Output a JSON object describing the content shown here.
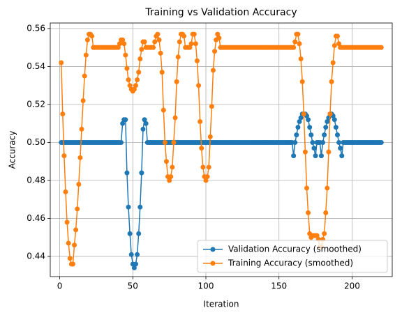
{
  "chart_data": {
    "type": "line",
    "title": "Training vs Validation Accuracy",
    "xlabel": "Iteration",
    "ylabel": "Accuracy",
    "grid": true,
    "legend": "lower right",
    "xlim": [
      -6.5,
      227.5
    ],
    "ylim": [
      0.4294,
      0.5629
    ],
    "xticks": [
      0,
      50,
      100,
      150,
      200
    ],
    "yticks": [
      0.44,
      0.46,
      0.48,
      {
        "value": 0.5,
        "label": "0.50"
      },
      0.52,
      0.54,
      0.56
    ],
    "x": [
      1,
      2,
      3,
      4,
      5,
      6,
      7,
      8,
      9,
      10,
      11,
      12,
      13,
      14,
      15,
      16,
      17,
      18,
      19,
      20,
      21,
      22,
      23,
      24,
      25,
      26,
      27,
      28,
      29,
      30,
      31,
      32,
      33,
      34,
      35,
      36,
      37,
      38,
      39,
      40,
      41,
      42,
      43,
      44,
      45,
      46,
      47,
      48,
      49,
      50,
      51,
      52,
      53,
      54,
      55,
      56,
      57,
      58,
      59,
      60,
      61,
      62,
      63,
      64,
      65,
      66,
      67,
      68,
      69,
      70,
      71,
      72,
      73,
      74,
      75,
      76,
      77,
      78,
      79,
      80,
      81,
      82,
      83,
      84,
      85,
      86,
      87,
      88,
      89,
      90,
      91,
      92,
      93,
      94,
      95,
      96,
      97,
      98,
      99,
      100,
      101,
      102,
      103,
      104,
      105,
      106,
      107,
      108,
      109,
      110,
      111,
      112,
      113,
      114,
      115,
      116,
      117,
      118,
      119,
      120,
      121,
      122,
      123,
      124,
      125,
      126,
      127,
      128,
      129,
      130,
      131,
      132,
      133,
      134,
      135,
      136,
      137,
      138,
      139,
      140,
      141,
      142,
      143,
      144,
      145,
      146,
      147,
      148,
      149,
      150,
      151,
      152,
      153,
      154,
      155,
      156,
      157,
      158,
      159,
      160,
      161,
      162,
      163,
      164,
      165,
      166,
      167,
      168,
      169,
      170,
      171,
      172,
      173,
      174,
      175,
      176,
      177,
      178,
      179,
      180,
      181,
      182,
      183,
      184,
      185,
      186,
      187,
      188,
      189,
      190,
      191,
      192,
      193,
      194,
      195,
      196,
      197,
      198,
      199,
      200,
      201,
      202,
      203,
      204,
      205,
      206,
      207,
      208,
      209,
      210,
      211,
      212,
      213,
      214,
      215,
      216,
      217,
      218,
      219,
      220
    ],
    "series": [
      {
        "name": "Validation Accuracy (smoothed)",
        "color": "#1f77b4",
        "values": [
          0.5,
          0.5,
          0.5,
          0.5,
          0.5,
          0.5,
          0.5,
          0.5,
          0.5,
          0.5,
          0.5,
          0.5,
          0.5,
          0.5,
          0.5,
          0.5,
          0.5,
          0.5,
          0.5,
          0.5,
          0.5,
          0.5,
          0.5,
          0.5,
          0.5,
          0.5,
          0.5,
          0.5,
          0.5,
          0.5,
          0.5,
          0.5,
          0.5,
          0.5,
          0.5,
          0.5,
          0.5,
          0.5,
          0.5,
          0.5,
          0.5,
          0.5,
          0.51,
          0.512,
          0.512,
          0.484,
          0.466,
          0.452,
          0.441,
          0.436,
          0.434,
          0.436,
          0.441,
          0.452,
          0.466,
          0.484,
          0.507,
          0.512,
          0.51,
          0.5,
          0.5,
          0.5,
          0.5,
          0.5,
          0.5,
          0.5,
          0.5,
          0.5,
          0.5,
          0.5,
          0.5,
          0.5,
          0.5,
          0.5,
          0.5,
          0.5,
          0.5,
          0.5,
          0.5,
          0.5,
          0.5,
          0.5,
          0.5,
          0.5,
          0.5,
          0.5,
          0.5,
          0.5,
          0.5,
          0.5,
          0.5,
          0.5,
          0.5,
          0.5,
          0.5,
          0.5,
          0.5,
          0.5,
          0.5,
          0.5,
          0.5,
          0.5,
          0.5,
          0.5,
          0.5,
          0.5,
          0.5,
          0.5,
          0.5,
          0.5,
          0.5,
          0.5,
          0.5,
          0.5,
          0.5,
          0.5,
          0.5,
          0.5,
          0.5,
          0.5,
          0.5,
          0.5,
          0.5,
          0.5,
          0.5,
          0.5,
          0.5,
          0.5,
          0.5,
          0.5,
          0.5,
          0.5,
          0.5,
          0.5,
          0.5,
          0.5,
          0.5,
          0.5,
          0.5,
          0.5,
          0.5,
          0.5,
          0.5,
          0.5,
          0.5,
          0.5,
          0.5,
          0.5,
          0.5,
          0.5,
          0.5,
          0.5,
          0.5,
          0.5,
          0.5,
          0.5,
          0.5,
          0.5,
          0.5,
          0.493,
          0.5,
          0.504,
          0.508,
          0.511,
          0.513,
          0.515,
          0.515,
          0.515,
          0.514,
          0.512,
          0.508,
          0.504,
          0.5,
          0.497,
          0.493,
          0.5,
          0.5,
          0.5,
          0.493,
          0.5,
          0.504,
          0.508,
          0.511,
          0.513,
          0.515,
          0.515,
          0.514,
          0.512,
          0.508,
          0.504,
          0.5,
          0.497,
          0.493,
          0.5,
          0.5,
          0.5,
          0.5,
          0.5,
          0.5,
          0.5,
          0.5,
          0.5,
          0.5,
          0.5,
          0.5,
          0.5,
          0.5,
          0.5,
          0.5,
          0.5,
          0.5,
          0.5,
          0.5,
          0.5,
          0.5,
          0.5,
          0.5,
          0.5,
          0.5,
          0.5
        ]
      },
      {
        "name": "Training Accuracy (smoothed)",
        "color": "#ff7f0e",
        "values": [
          0.542,
          0.515,
          0.493,
          0.474,
          0.458,
          0.447,
          0.439,
          0.436,
          0.436,
          0.446,
          0.454,
          0.465,
          0.478,
          0.492,
          0.507,
          0.522,
          0.535,
          0.546,
          0.554,
          0.557,
          0.557,
          0.556,
          0.55,
          0.55,
          0.55,
          0.55,
          0.55,
          0.55,
          0.55,
          0.55,
          0.55,
          0.55,
          0.55,
          0.55,
          0.55,
          0.55,
          0.55,
          0.55,
          0.55,
          0.55,
          0.552,
          0.554,
          0.554,
          0.552,
          0.546,
          0.539,
          0.533,
          0.53,
          0.528,
          0.527,
          0.528,
          0.53,
          0.533,
          0.537,
          0.544,
          0.549,
          0.553,
          0.553,
          0.55,
          0.55,
          0.55,
          0.55,
          0.55,
          0.55,
          0.553,
          0.556,
          0.557,
          0.554,
          0.547,
          0.537,
          0.517,
          0.5,
          0.49,
          0.482,
          0.48,
          0.482,
          0.487,
          0.5,
          0.513,
          0.532,
          0.545,
          0.553,
          0.557,
          0.557,
          0.556,
          0.55,
          0.55,
          0.55,
          0.55,
          0.552,
          0.557,
          0.557,
          0.552,
          0.543,
          0.53,
          0.511,
          0.497,
          0.487,
          0.482,
          0.48,
          0.482,
          0.487,
          0.503,
          0.519,
          0.538,
          0.548,
          0.554,
          0.557,
          0.555,
          0.55,
          0.55,
          0.55,
          0.55,
          0.55,
          0.55,
          0.55,
          0.55,
          0.55,
          0.55,
          0.55,
          0.55,
          0.55,
          0.55,
          0.55,
          0.55,
          0.55,
          0.55,
          0.55,
          0.55,
          0.55,
          0.55,
          0.55,
          0.55,
          0.55,
          0.55,
          0.55,
          0.55,
          0.55,
          0.55,
          0.55,
          0.55,
          0.55,
          0.55,
          0.55,
          0.55,
          0.55,
          0.55,
          0.55,
          0.55,
          0.55,
          0.55,
          0.55,
          0.55,
          0.55,
          0.55,
          0.55,
          0.55,
          0.55,
          0.55,
          0.55,
          0.553,
          0.557,
          0.557,
          0.552,
          0.544,
          0.532,
          0.515,
          0.495,
          0.476,
          0.463,
          0.452,
          0.45,
          0.451,
          0.451,
          0.451,
          0.451,
          0.449,
          0.445,
          0.445,
          0.449,
          0.452,
          0.463,
          0.476,
          0.495,
          0.515,
          0.532,
          0.542,
          0.551,
          0.556,
          0.556,
          0.552,
          0.55,
          0.55,
          0.55,
          0.55,
          0.55,
          0.55,
          0.55,
          0.55,
          0.55,
          0.55,
          0.55,
          0.55,
          0.55,
          0.55,
          0.55,
          0.55,
          0.55,
          0.55,
          0.55,
          0.55,
          0.55,
          0.55,
          0.55,
          0.55,
          0.55,
          0.55,
          0.55,
          0.55,
          0.55
        ]
      }
    ]
  }
}
